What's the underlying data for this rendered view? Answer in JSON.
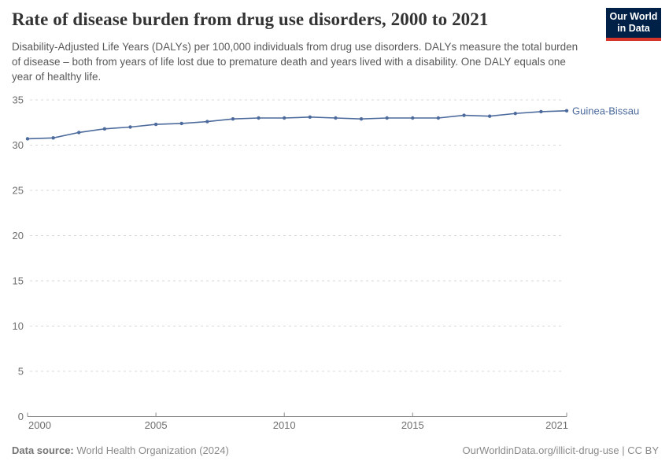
{
  "header": {
    "title": "Rate of disease burden from drug use disorders, 2000 to 2021",
    "subtitle": "Disability-Adjusted Life Years (DALYs) per 100,000 individuals from drug use disorders. DALYs measure the total burden of disease – both from years of life lost due to premature death and years lived with a disability. One DALY equals one year of healthy life.",
    "logo": {
      "line1": "Our World",
      "line2": "in Data",
      "bg_color": "#002147",
      "stripe_color": "#d8352a"
    }
  },
  "chart_data": {
    "type": "line",
    "title": "Rate of disease burden from drug use disorders, 2000 to 2021",
    "xlabel": "",
    "ylabel": "",
    "xlim": [
      2000,
      2021
    ],
    "ylim": [
      0,
      35
    ],
    "x_ticks": [
      2000,
      2005,
      2010,
      2015,
      2021
    ],
    "y_ticks": [
      0,
      5,
      10,
      15,
      20,
      25,
      30,
      35
    ],
    "grid": "horizontal-dashed",
    "legend_position": "end-of-line",
    "series": [
      {
        "name": "Guinea-Bissau",
        "color": "#4c6a9c",
        "x": [
          2000,
          2001,
          2002,
          2003,
          2004,
          2005,
          2006,
          2007,
          2008,
          2009,
          2010,
          2011,
          2012,
          2013,
          2014,
          2015,
          2016,
          2017,
          2018,
          2019,
          2020,
          2021
        ],
        "values": [
          30.7,
          30.8,
          31.4,
          31.8,
          32.0,
          32.3,
          32.4,
          32.6,
          32.9,
          33.0,
          33.0,
          33.1,
          33.0,
          32.9,
          33.0,
          33.0,
          33.0,
          33.3,
          33.2,
          33.5,
          33.7,
          33.8
        ]
      }
    ]
  },
  "footer": {
    "data_source_label": "Data source:",
    "data_source_value": "World Health Organization (2024)",
    "credit": "OurWorldinData.org/illicit-drug-use | CC BY"
  },
  "colors": {
    "line": "#4c6a9c",
    "grid": "#d9d9d9",
    "axis": "#8c8c8c",
    "tick_label": "#6e6e6e",
    "title": "#333333",
    "subtitle": "#595959",
    "footer": "#8a8a8a"
  }
}
